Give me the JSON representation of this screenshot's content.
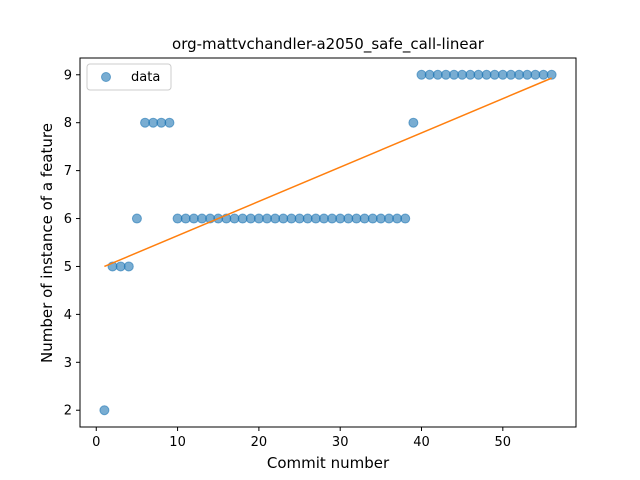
{
  "chart_data": {
    "type": "scatter",
    "title": "org-mattvchandler-a2050_safe_call-linear",
    "xlabel": "Commit number",
    "ylabel": "Number of instance of a feature",
    "xlim": [
      -2,
      59
    ],
    "ylim": [
      1.65,
      9.35
    ],
    "xticks": [
      0,
      10,
      20,
      30,
      40,
      50
    ],
    "yticks": [
      2,
      3,
      4,
      5,
      6,
      7,
      8,
      9
    ],
    "grid": false,
    "legend_position": "top-left",
    "series": [
      {
        "name": "data",
        "kind": "scatter",
        "color": "#1f77b4",
        "x": [
          1,
          2,
          3,
          4,
          5,
          6,
          7,
          8,
          9,
          10,
          11,
          12,
          13,
          14,
          15,
          16,
          17,
          18,
          19,
          20,
          21,
          22,
          23,
          24,
          25,
          26,
          27,
          28,
          29,
          30,
          31,
          32,
          33,
          34,
          35,
          36,
          37,
          38,
          39,
          40,
          41,
          42,
          43,
          44,
          45,
          46,
          47,
          48,
          49,
          50,
          51,
          52,
          53,
          54,
          55,
          56
        ],
        "y": [
          2,
          5,
          5,
          5,
          6,
          8,
          8,
          8,
          8,
          6,
          6,
          6,
          6,
          6,
          6,
          6,
          6,
          6,
          6,
          6,
          6,
          6,
          6,
          6,
          6,
          6,
          6,
          6,
          6,
          6,
          6,
          6,
          6,
          6,
          6,
          6,
          6,
          6,
          8,
          9,
          9,
          9,
          9,
          9,
          9,
          9,
          9,
          9,
          9,
          9,
          9,
          9,
          9,
          9,
          9,
          9
        ]
      },
      {
        "kind": "line",
        "color": "#ff7f0e",
        "x": [
          1,
          56
        ],
        "y": [
          5.0,
          8.93
        ]
      }
    ]
  }
}
